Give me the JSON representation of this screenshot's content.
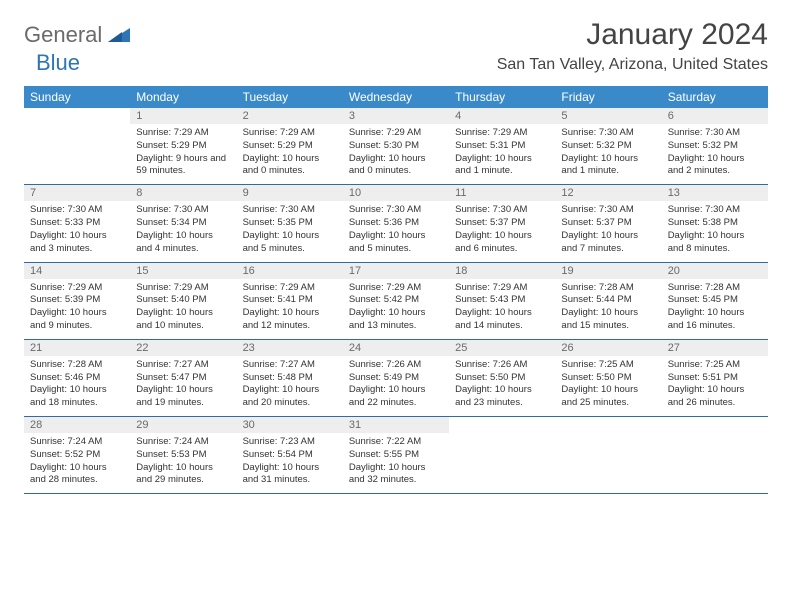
{
  "logo": {
    "general": "General",
    "blue": "Blue"
  },
  "title": "January 2024",
  "location": "San Tan Valley, Arizona, United States",
  "colors": {
    "header_bg": "#3a8ac9",
    "header_text": "#ffffff",
    "daynum_bg": "#eeeeee",
    "daynum_text": "#6a6a6a",
    "row_border": "#2e6da4",
    "logo_gray": "#6a6a6a",
    "logo_blue": "#2e75b6"
  },
  "weekdays": [
    "Sunday",
    "Monday",
    "Tuesday",
    "Wednesday",
    "Thursday",
    "Friday",
    "Saturday"
  ],
  "weeks": [
    [
      {
        "n": "",
        "sr": "",
        "ss": "",
        "dl": ""
      },
      {
        "n": "1",
        "sr": "Sunrise: 7:29 AM",
        "ss": "Sunset: 5:29 PM",
        "dl": "Daylight: 9 hours and 59 minutes."
      },
      {
        "n": "2",
        "sr": "Sunrise: 7:29 AM",
        "ss": "Sunset: 5:29 PM",
        "dl": "Daylight: 10 hours and 0 minutes."
      },
      {
        "n": "3",
        "sr": "Sunrise: 7:29 AM",
        "ss": "Sunset: 5:30 PM",
        "dl": "Daylight: 10 hours and 0 minutes."
      },
      {
        "n": "4",
        "sr": "Sunrise: 7:29 AM",
        "ss": "Sunset: 5:31 PM",
        "dl": "Daylight: 10 hours and 1 minute."
      },
      {
        "n": "5",
        "sr": "Sunrise: 7:30 AM",
        "ss": "Sunset: 5:32 PM",
        "dl": "Daylight: 10 hours and 1 minute."
      },
      {
        "n": "6",
        "sr": "Sunrise: 7:30 AM",
        "ss": "Sunset: 5:32 PM",
        "dl": "Daylight: 10 hours and 2 minutes."
      }
    ],
    [
      {
        "n": "7",
        "sr": "Sunrise: 7:30 AM",
        "ss": "Sunset: 5:33 PM",
        "dl": "Daylight: 10 hours and 3 minutes."
      },
      {
        "n": "8",
        "sr": "Sunrise: 7:30 AM",
        "ss": "Sunset: 5:34 PM",
        "dl": "Daylight: 10 hours and 4 minutes."
      },
      {
        "n": "9",
        "sr": "Sunrise: 7:30 AM",
        "ss": "Sunset: 5:35 PM",
        "dl": "Daylight: 10 hours and 5 minutes."
      },
      {
        "n": "10",
        "sr": "Sunrise: 7:30 AM",
        "ss": "Sunset: 5:36 PM",
        "dl": "Daylight: 10 hours and 5 minutes."
      },
      {
        "n": "11",
        "sr": "Sunrise: 7:30 AM",
        "ss": "Sunset: 5:37 PM",
        "dl": "Daylight: 10 hours and 6 minutes."
      },
      {
        "n": "12",
        "sr": "Sunrise: 7:30 AM",
        "ss": "Sunset: 5:37 PM",
        "dl": "Daylight: 10 hours and 7 minutes."
      },
      {
        "n": "13",
        "sr": "Sunrise: 7:30 AM",
        "ss": "Sunset: 5:38 PM",
        "dl": "Daylight: 10 hours and 8 minutes."
      }
    ],
    [
      {
        "n": "14",
        "sr": "Sunrise: 7:29 AM",
        "ss": "Sunset: 5:39 PM",
        "dl": "Daylight: 10 hours and 9 minutes."
      },
      {
        "n": "15",
        "sr": "Sunrise: 7:29 AM",
        "ss": "Sunset: 5:40 PM",
        "dl": "Daylight: 10 hours and 10 minutes."
      },
      {
        "n": "16",
        "sr": "Sunrise: 7:29 AM",
        "ss": "Sunset: 5:41 PM",
        "dl": "Daylight: 10 hours and 12 minutes."
      },
      {
        "n": "17",
        "sr": "Sunrise: 7:29 AM",
        "ss": "Sunset: 5:42 PM",
        "dl": "Daylight: 10 hours and 13 minutes."
      },
      {
        "n": "18",
        "sr": "Sunrise: 7:29 AM",
        "ss": "Sunset: 5:43 PM",
        "dl": "Daylight: 10 hours and 14 minutes."
      },
      {
        "n": "19",
        "sr": "Sunrise: 7:28 AM",
        "ss": "Sunset: 5:44 PM",
        "dl": "Daylight: 10 hours and 15 minutes."
      },
      {
        "n": "20",
        "sr": "Sunrise: 7:28 AM",
        "ss": "Sunset: 5:45 PM",
        "dl": "Daylight: 10 hours and 16 minutes."
      }
    ],
    [
      {
        "n": "21",
        "sr": "Sunrise: 7:28 AM",
        "ss": "Sunset: 5:46 PM",
        "dl": "Daylight: 10 hours and 18 minutes."
      },
      {
        "n": "22",
        "sr": "Sunrise: 7:27 AM",
        "ss": "Sunset: 5:47 PM",
        "dl": "Daylight: 10 hours and 19 minutes."
      },
      {
        "n": "23",
        "sr": "Sunrise: 7:27 AM",
        "ss": "Sunset: 5:48 PM",
        "dl": "Daylight: 10 hours and 20 minutes."
      },
      {
        "n": "24",
        "sr": "Sunrise: 7:26 AM",
        "ss": "Sunset: 5:49 PM",
        "dl": "Daylight: 10 hours and 22 minutes."
      },
      {
        "n": "25",
        "sr": "Sunrise: 7:26 AM",
        "ss": "Sunset: 5:50 PM",
        "dl": "Daylight: 10 hours and 23 minutes."
      },
      {
        "n": "26",
        "sr": "Sunrise: 7:25 AM",
        "ss": "Sunset: 5:50 PM",
        "dl": "Daylight: 10 hours and 25 minutes."
      },
      {
        "n": "27",
        "sr": "Sunrise: 7:25 AM",
        "ss": "Sunset: 5:51 PM",
        "dl": "Daylight: 10 hours and 26 minutes."
      }
    ],
    [
      {
        "n": "28",
        "sr": "Sunrise: 7:24 AM",
        "ss": "Sunset: 5:52 PM",
        "dl": "Daylight: 10 hours and 28 minutes."
      },
      {
        "n": "29",
        "sr": "Sunrise: 7:24 AM",
        "ss": "Sunset: 5:53 PM",
        "dl": "Daylight: 10 hours and 29 minutes."
      },
      {
        "n": "30",
        "sr": "Sunrise: 7:23 AM",
        "ss": "Sunset: 5:54 PM",
        "dl": "Daylight: 10 hours and 31 minutes."
      },
      {
        "n": "31",
        "sr": "Sunrise: 7:22 AM",
        "ss": "Sunset: 5:55 PM",
        "dl": "Daylight: 10 hours and 32 minutes."
      },
      {
        "n": "",
        "sr": "",
        "ss": "",
        "dl": ""
      },
      {
        "n": "",
        "sr": "",
        "ss": "",
        "dl": ""
      },
      {
        "n": "",
        "sr": "",
        "ss": "",
        "dl": ""
      }
    ]
  ]
}
